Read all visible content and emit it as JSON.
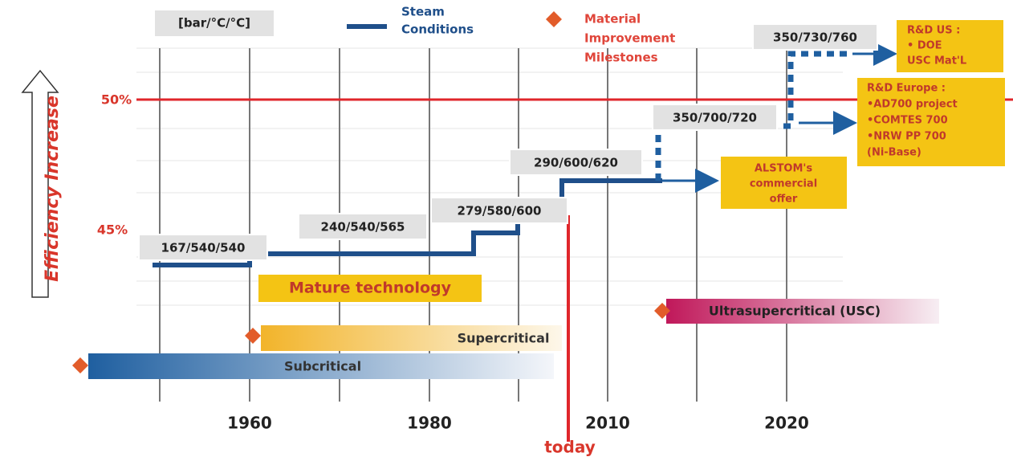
{
  "header": {
    "unit": "[bar/°C/°C]",
    "legend_steam": [
      "Steam",
      "Conditions"
    ],
    "legend_material": [
      "Material",
      "Improvement",
      "Milestones"
    ]
  },
  "axis": {
    "efficiency": "Efficiency Increase",
    "levels": [
      "50%",
      "45%"
    ]
  },
  "conditions": [
    "167/540/540",
    "240/540/565",
    "279/580/600",
    "290/600/620",
    "350/700/720",
    "350/730/760"
  ],
  "mature": "Mature technology",
  "technologies": [
    "Subcritical",
    "Supercritical",
    "Ultrasupercritical (USC)"
  ],
  "notes": {
    "alstom": [
      "ALSTOM's",
      "commercial",
      "offer"
    ],
    "rd_us": [
      "R&D US :",
      "• DOE",
      "USC Mat'L"
    ],
    "rd_europe": [
      "R&D Europe :",
      "•AD700 project",
      "•COMTES 700",
      "•NRW PP 700",
      "(Ni-Base)"
    ]
  },
  "years": [
    "1960",
    "1980",
    "2010",
    "2020"
  ],
  "today": "today"
}
